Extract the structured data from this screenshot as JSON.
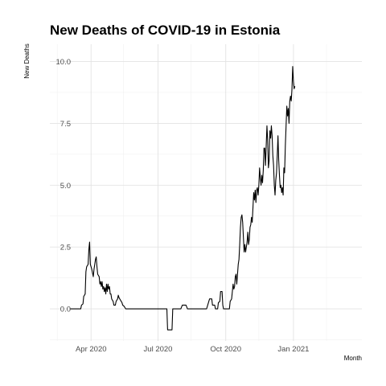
{
  "chart_data": {
    "type": "line",
    "title": "New Deaths of COVID-19 in Estonia",
    "xlabel": "Month",
    "ylabel": "New Deaths",
    "xlim": [
      "2020-02-05",
      "2021-04-04"
    ],
    "ylim": [
      -1.3,
      10.7
    ],
    "grid": true,
    "x_ticks": [
      {
        "date": "2020-04-01",
        "label": "Apr 2020"
      },
      {
        "date": "2020-07-01",
        "label": "Jul 2020"
      },
      {
        "date": "2020-10-01",
        "label": "Oct 2020"
      },
      {
        "date": "2021-01-01",
        "label": "Jan 2021"
      }
    ],
    "x_minor": [
      "2020-02-15",
      "2020-05-15",
      "2020-08-15",
      "2020-11-15",
      "2021-02-15"
    ],
    "y_ticks": [
      {
        "value": 0,
        "label": "0.0"
      },
      {
        "value": 2.5,
        "label": "2.5"
      },
      {
        "value": 5,
        "label": "5.0"
      },
      {
        "value": 7.5,
        "label": "7.5"
      },
      {
        "value": 10,
        "label": "10.0"
      }
    ],
    "y_minor": [
      -1.25,
      1.25,
      3.75,
      6.25,
      8.75
    ],
    "series": [
      {
        "points": [
          [
            "2020-03-03",
            0
          ],
          [
            "2020-03-18",
            0
          ],
          [
            "2020-03-19",
            0.15
          ],
          [
            "2020-03-21",
            0.2
          ],
          [
            "2020-03-22",
            0.5
          ],
          [
            "2020-03-24",
            0.6
          ],
          [
            "2020-03-25",
            1.5
          ],
          [
            "2020-03-26",
            1.7
          ],
          [
            "2020-03-28",
            1.8
          ],
          [
            "2020-03-29",
            2.4
          ],
          [
            "2020-03-30",
            2.7
          ],
          [
            "2020-03-31",
            1.8
          ],
          [
            "2020-04-02",
            1.6
          ],
          [
            "2020-04-04",
            1.3
          ],
          [
            "2020-04-05",
            1.6
          ],
          [
            "2020-04-07",
            2.0
          ],
          [
            "2020-04-08",
            2.1
          ],
          [
            "2020-04-09",
            1.7
          ],
          [
            "2020-04-10",
            1.4
          ],
          [
            "2020-04-12",
            1.3
          ],
          [
            "2020-04-13",
            1.0
          ],
          [
            "2020-04-14",
            1.1
          ],
          [
            "2020-04-15",
            0.9
          ],
          [
            "2020-04-16",
            1.1
          ],
          [
            "2020-04-17",
            0.8
          ],
          [
            "2020-04-18",
            0.9
          ],
          [
            "2020-04-19",
            0.7
          ],
          [
            "2020-04-20",
            0.85
          ],
          [
            "2020-04-21",
            0.6
          ],
          [
            "2020-04-22",
            1.0
          ],
          [
            "2020-04-23",
            0.7
          ],
          [
            "2020-04-24",
            1.0
          ],
          [
            "2020-04-25",
            0.8
          ],
          [
            "2020-04-26",
            0.9
          ],
          [
            "2020-04-27",
            0.6
          ],
          [
            "2020-04-28",
            0.6
          ],
          [
            "2020-04-29",
            0.4
          ],
          [
            "2020-05-01",
            0.3
          ],
          [
            "2020-05-02",
            0.15
          ],
          [
            "2020-05-04",
            0.15
          ],
          [
            "2020-05-05",
            0.3
          ],
          [
            "2020-05-07",
            0.4
          ],
          [
            "2020-05-08",
            0.55
          ],
          [
            "2020-05-09",
            0.45
          ],
          [
            "2020-05-10",
            0.4
          ],
          [
            "2020-05-12",
            0.3
          ],
          [
            "2020-05-13",
            0.25
          ],
          [
            "2020-05-14",
            0.15
          ],
          [
            "2020-05-16",
            0.1
          ],
          [
            "2020-05-18",
            0
          ],
          [
            "2020-07-11",
            0
          ],
          [
            "2020-07-13",
            0
          ],
          [
            "2020-07-14",
            -0.85
          ],
          [
            "2020-07-20",
            -0.85
          ],
          [
            "2020-07-21",
            0
          ],
          [
            "2020-08-01",
            0
          ],
          [
            "2020-08-03",
            0.15
          ],
          [
            "2020-08-08",
            0.15
          ],
          [
            "2020-08-10",
            0
          ],
          [
            "2020-09-01",
            0
          ],
          [
            "2020-09-05",
            0
          ],
          [
            "2020-09-08",
            0.3
          ],
          [
            "2020-09-09",
            0.4
          ],
          [
            "2020-09-12",
            0.4
          ],
          [
            "2020-09-13",
            0.15
          ],
          [
            "2020-09-16",
            0.15
          ],
          [
            "2020-09-17",
            0
          ],
          [
            "2020-09-20",
            0
          ],
          [
            "2020-09-21",
            0.25
          ],
          [
            "2020-09-23",
            0.3
          ],
          [
            "2020-09-24",
            0.7
          ],
          [
            "2020-09-26",
            0.7
          ],
          [
            "2020-09-27",
            0.15
          ],
          [
            "2020-09-28",
            0
          ],
          [
            "2020-10-06",
            0
          ],
          [
            "2020-10-07",
            0.3
          ],
          [
            "2020-10-09",
            0.4
          ],
          [
            "2020-10-10",
            0.7
          ],
          [
            "2020-10-11",
            1.0
          ],
          [
            "2020-10-12",
            0.8
          ],
          [
            "2020-10-13",
            0.9
          ],
          [
            "2020-10-14",
            1.3
          ],
          [
            "2020-10-15",
            1.4
          ],
          [
            "2020-10-16",
            1.0
          ],
          [
            "2020-10-17",
            1.4
          ],
          [
            "2020-10-18",
            1.8
          ],
          [
            "2020-10-19",
            2.0
          ],
          [
            "2020-10-20",
            2.6
          ],
          [
            "2020-10-21",
            3.3
          ],
          [
            "2020-10-22",
            3.7
          ],
          [
            "2020-10-23",
            3.8
          ],
          [
            "2020-10-24",
            3.5
          ],
          [
            "2020-10-25",
            2.9
          ],
          [
            "2020-10-26",
            2.3
          ],
          [
            "2020-10-27",
            2.6
          ],
          [
            "2020-10-28",
            2.3
          ],
          [
            "2020-10-29",
            2.5
          ],
          [
            "2020-10-30",
            2.7
          ],
          [
            "2020-10-31",
            3.1
          ],
          [
            "2020-11-01",
            2.6
          ],
          [
            "2020-11-02",
            2.8
          ],
          [
            "2020-11-03",
            3.3
          ],
          [
            "2020-11-04",
            3.4
          ],
          [
            "2020-11-05",
            3.7
          ],
          [
            "2020-11-06",
            3.5
          ],
          [
            "2020-11-07",
            4.1
          ],
          [
            "2020-11-08",
            4.7
          ],
          [
            "2020-11-09",
            4.4
          ],
          [
            "2020-11-10",
            4.8
          ],
          [
            "2020-11-11",
            4.3
          ],
          [
            "2020-11-12",
            4.8
          ],
          [
            "2020-11-13",
            4.9
          ],
          [
            "2020-11-14",
            4.6
          ],
          [
            "2020-11-15",
            5.0
          ],
          [
            "2020-11-16",
            5.7
          ],
          [
            "2020-11-17",
            5.3
          ],
          [
            "2020-11-18",
            5.0
          ],
          [
            "2020-11-19",
            5.4
          ],
          [
            "2020-11-20",
            5.1
          ],
          [
            "2020-11-21",
            5.6
          ],
          [
            "2020-11-22",
            6.5
          ],
          [
            "2020-11-23",
            6.5
          ],
          [
            "2020-11-24",
            5.8
          ],
          [
            "2020-11-25",
            6.6
          ],
          [
            "2020-11-26",
            7.4
          ],
          [
            "2020-11-27",
            6.8
          ],
          [
            "2020-11-28",
            5.7
          ],
          [
            "2020-11-29",
            6.0
          ],
          [
            "2020-11-30",
            7.2
          ],
          [
            "2020-12-01",
            6.9
          ],
          [
            "2020-12-02",
            7.4
          ],
          [
            "2020-12-03",
            7.0
          ],
          [
            "2020-12-04",
            6.2
          ],
          [
            "2020-12-05",
            5.8
          ],
          [
            "2020-12-06",
            5.0
          ],
          [
            "2020-12-07",
            4.6
          ],
          [
            "2020-12-08",
            5.2
          ],
          [
            "2020-12-09",
            5.5
          ],
          [
            "2020-12-10",
            6.2
          ],
          [
            "2020-12-11",
            7.0
          ],
          [
            "2020-12-12",
            6.0
          ],
          [
            "2020-12-13",
            5.4
          ],
          [
            "2020-12-14",
            4.9
          ],
          [
            "2020-12-15",
            5.0
          ],
          [
            "2020-12-16",
            4.7
          ],
          [
            "2020-12-17",
            4.9
          ],
          [
            "2020-12-18",
            4.6
          ],
          [
            "2020-12-19",
            5.7
          ],
          [
            "2020-12-20",
            5.5
          ],
          [
            "2020-12-21",
            6.6
          ],
          [
            "2020-12-22",
            7.4
          ],
          [
            "2020-12-23",
            8.2
          ],
          [
            "2020-12-24",
            7.8
          ],
          [
            "2020-12-25",
            8.1
          ],
          [
            "2020-12-26",
            7.5
          ],
          [
            "2020-12-27",
            8.4
          ],
          [
            "2020-12-28",
            8.6
          ],
          [
            "2020-12-29",
            8.4
          ],
          [
            "2020-12-30",
            8.9
          ],
          [
            "2020-12-31",
            9.8
          ],
          [
            "2021-01-01",
            9.2
          ],
          [
            "2021-01-02",
            8.9
          ],
          [
            "2021-01-03",
            9.0
          ]
        ]
      }
    ]
  }
}
